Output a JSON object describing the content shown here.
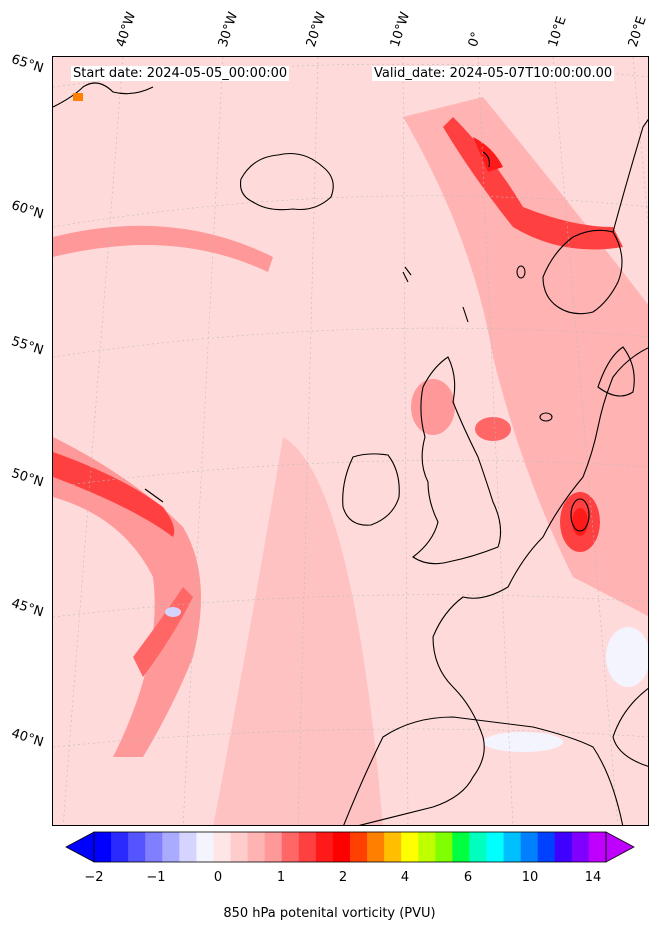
{
  "start_date": "Start date: 2024-05-05_00:00:00",
  "valid_date": "Valid_date: 2024-05-07T10:00:00.00",
  "lat_labels": [
    "65°N",
    "60°N",
    "55°N",
    "50°N",
    "45°N",
    "40°N"
  ],
  "lon_labels": [
    "40°W",
    "30°W",
    "20°W",
    "10°W",
    "0°",
    "10°E",
    "20°E"
  ],
  "colorbar": {
    "label": "850 hPa potenital vorticity (PVU)",
    "ticks": [
      "−2",
      "−1",
      "0",
      "1",
      "2",
      "4",
      "6",
      "10",
      "14"
    ],
    "colors": [
      "#0000ff",
      "#2a2aff",
      "#5555ff",
      "#7f7fff",
      "#aaaaff",
      "#d4d4ff",
      "#f4f4ff",
      "#ffe6e6",
      "#ffcccc",
      "#ffb3b3",
      "#ff9999",
      "#ff6666",
      "#ff4040",
      "#ff1a1a",
      "#ff0000",
      "#ff4000",
      "#ff8000",
      "#ffbf00",
      "#ffff00",
      "#bfff00",
      "#80ff00",
      "#00ff40",
      "#00ffbf",
      "#00ffff",
      "#00bfff",
      "#0080ff",
      "#0040ff",
      "#4000ff",
      "#8000ff",
      "#bf00ff"
    ],
    "under_color": "#0000ff",
    "over_color": "#bf00ff"
  },
  "map_colors": {
    "background": "#ffe9e9",
    "low": "#ffcccc",
    "mid": "#ff9999",
    "high": "#ff4040",
    "peak": "#ff0000",
    "negative": "#d4d4ff",
    "coast": "#000000"
  }
}
